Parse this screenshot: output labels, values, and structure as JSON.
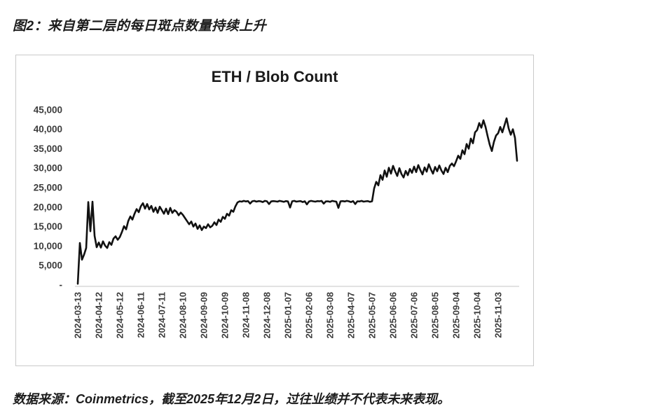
{
  "figure_title": "图2：来自第二层的每日斑点数量持续上升",
  "source_note": "数据来源：Coinmetrics，截至2025年12月2日，过往业绩并不代表未来表现。",
  "colors": {
    "background": "#ffffff",
    "card_border": "#c9c9c9",
    "line": "#111111",
    "axis_line": "#d8d8d8",
    "tick_text": "#3c3c3c",
    "title_text": "#1a1a1a"
  },
  "chart_data": {
    "type": "line",
    "title": "ETH / Blob Count",
    "series_name": "ETH daily blob count",
    "xlabel": "",
    "ylabel": "",
    "start_date": "2024-03-13",
    "end_date": "2025-12-02",
    "interval_days": 3,
    "ylim": [
      0,
      47500
    ],
    "grid": false,
    "legend": false,
    "y_tick_values": [
      45000,
      40000,
      35000,
      30000,
      25000,
      20000,
      15000,
      10000,
      5000,
      0
    ],
    "y_tick_labels": [
      "45,000",
      "40,000",
      "35,000",
      "30,000",
      "25,000",
      "20,000",
      "15,000",
      "10,000",
      "5,000",
      "-"
    ],
    "x_tick_interval_days": 30,
    "x_tick_labels": [
      "2024-03-13",
      "2024-04-12",
      "2024-05-12",
      "2024-06-11",
      "2024-07-11",
      "2024-08-10",
      "2024-09-09",
      "2024-10-09",
      "2024-11-08",
      "2024-12-08",
      "2025-01-07",
      "2025-02-06",
      "2025-03-08",
      "2025-04-07",
      "2025-05-07",
      "2025-06-06",
      "2025-07-06",
      "2025-08-05",
      "2025-09-04",
      "2025-10-04",
      "2025-11-03"
    ],
    "values": [
      300,
      10800,
      6500,
      7800,
      9500,
      21300,
      13800,
      21400,
      12600,
      9700,
      10900,
      9600,
      11200,
      10100,
      9500,
      11000,
      10300,
      11900,
      12500,
      11600,
      12300,
      13600,
      15100,
      14300,
      16400,
      17600,
      16800,
      18300,
      19500,
      18700,
      20200,
      21000,
      19600,
      20800,
      19400,
      20300,
      18800,
      19900,
      18500,
      20100,
      19200,
      18300,
      19600,
      18200,
      19800,
      18500,
      19200,
      18800,
      17900,
      18600,
      18000,
      17200,
      16400,
      15600,
      16300,
      15000,
      15800,
      14400,
      15300,
      14100,
      15000,
      14600,
      15600,
      14800,
      15200,
      16100,
      15400,
      16800,
      16200,
      17500,
      17000,
      18300,
      17800,
      19200,
      18800,
      20200,
      21200,
      21500,
      21400,
      21600,
      21450,
      21550,
      20900,
      21500,
      21600,
      21400,
      21550,
      21500,
      21300,
      21600,
      21500,
      20800,
      21450,
      21550,
      21500,
      21400,
      21600,
      21500,
      21350,
      21550,
      21450,
      19900,
      21500,
      21600,
      21400,
      21500,
      21550,
      21300,
      21500,
      20700,
      21450,
      21600,
      21500,
      21400,
      21550,
      21500,
      21600,
      20900,
      21450,
      21500,
      21350,
      21600,
      21500,
      21400,
      19800,
      21500,
      21550,
      21450,
      21600,
      21500,
      21300,
      21550,
      20800,
      21500,
      21450,
      21600,
      21400,
      21500,
      21550,
      21350,
      21500,
      24800,
      26500,
      25600,
      28200,
      27000,
      29400,
      27800,
      30100,
      28600,
      30600,
      29200,
      28000,
      30000,
      28500,
      27600,
      29300,
      28200,
      29800,
      28800,
      30400,
      29000,
      30800,
      29500,
      28400,
      30200,
      29100,
      31000,
      29700,
      28600,
      30300,
      29200,
      30700,
      29400,
      28500,
      30100,
      29000,
      30600,
      31200,
      30500,
      31800,
      33200,
      32400,
      34600,
      33600,
      36200,
      35000,
      37600,
      36400,
      39200,
      39800,
      41600,
      40400,
      42300,
      40600,
      38200,
      36000,
      34400,
      36800,
      38400,
      39000,
      40600,
      39200,
      41000,
      42800,
      40200,
      38600,
      40000,
      37800,
      31900
    ]
  }
}
